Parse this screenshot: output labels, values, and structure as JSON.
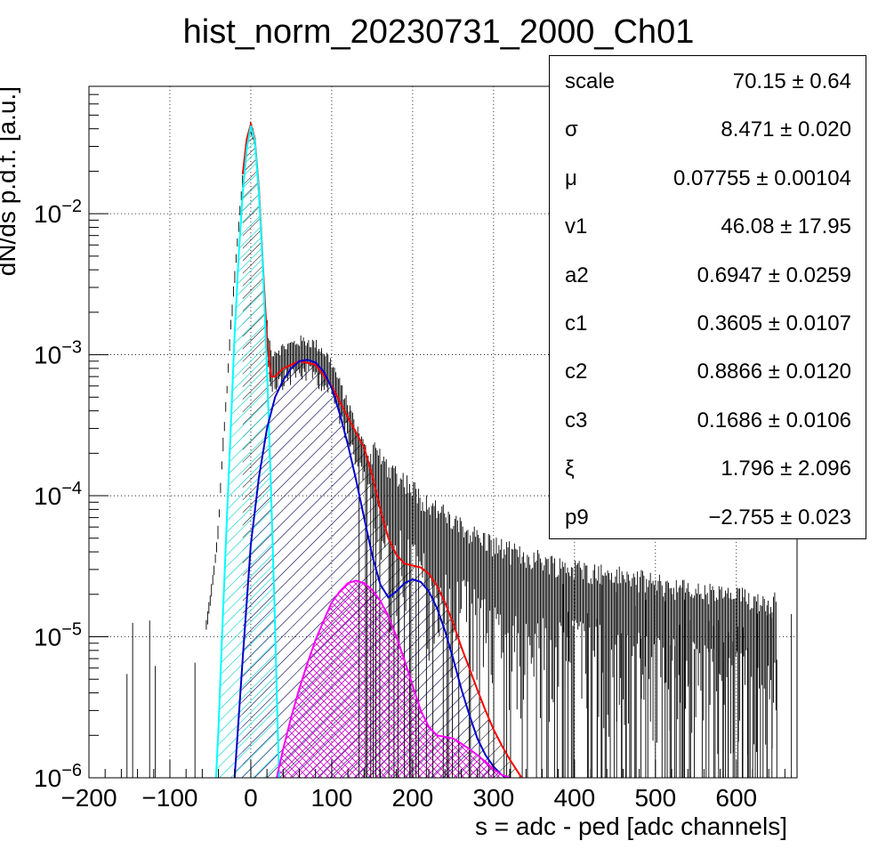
{
  "chart_data": {
    "type": "histogram",
    "title": "hist_norm_20230731_2000_Ch01",
    "xlabel": "s = adc - ped [adc channels]",
    "ylabel": "dN/ds p.d.f. [a.u.]",
    "xlim": [
      -200,
      675
    ],
    "ylim": [
      1e-06,
      0.08
    ],
    "yscale": "log",
    "grid": true,
    "x_ticks": [
      -200,
      -100,
      0,
      100,
      200,
      300,
      400,
      500,
      600
    ],
    "y_ticks": [
      {
        "value": 1e-06,
        "base": "10",
        "exp": "−6"
      },
      {
        "value": 1e-05,
        "base": "10",
        "exp": "−5"
      },
      {
        "value": 0.0001,
        "base": "10",
        "exp": "−4"
      },
      {
        "value": 0.001,
        "base": "10",
        "exp": "−3"
      },
      {
        "value": 0.01,
        "base": "10",
        "exp": "−2"
      }
    ],
    "series": [
      {
        "kind": "data",
        "color": "#000000",
        "x": [
          -55,
          -45,
          -40,
          -35,
          -30,
          -25,
          -20,
          -15,
          -10,
          -5,
          0,
          5,
          10,
          15,
          20,
          25,
          30,
          40,
          50,
          60,
          70,
          80,
          90,
          100,
          110,
          120,
          130,
          140,
          150,
          160,
          170,
          180,
          190,
          200,
          210,
          220,
          230,
          240,
          250,
          260,
          270,
          280,
          290,
          300,
          320,
          340,
          360,
          380,
          400,
          450,
          500,
          550,
          600,
          650
        ],
        "y": [
          1.2e-05,
          3e-05,
          6e-05,
          0.0002,
          0.0005,
          0.0015,
          0.0035,
          0.008,
          0.018,
          0.032,
          0.042,
          0.033,
          0.014,
          0.004,
          0.0013,
          0.00085,
          0.00085,
          0.0009,
          0.00095,
          0.001,
          0.001,
          0.00095,
          0.00085,
          0.0007,
          0.0005,
          0.00035,
          0.00025,
          0.00018,
          0.00014,
          0.00012,
          0.0001,
          9e-05,
          8e-05,
          7e-05,
          6e-05,
          5.5e-05,
          5e-05,
          4.5e-05,
          4e-05,
          3.7e-05,
          3.5e-05,
          3.2e-05,
          3e-05,
          2.8e-05,
          2.5e-05,
          2.3e-05,
          2.2e-05,
          2e-05,
          1.9e-05,
          1.7e-05,
          1.5e-05,
          1.3e-05,
          1.2e-05,
          1.1e-05
        ]
      },
      {
        "kind": "total-fit",
        "color": "#ff0000",
        "x": [
          -10,
          -5,
          0,
          5,
          10,
          15,
          20,
          25,
          30,
          40,
          60,
          80,
          100,
          120,
          140,
          150,
          160,
          170,
          180,
          190,
          200,
          210,
          220,
          230,
          240,
          250,
          260,
          270,
          280,
          290,
          300,
          310,
          320,
          330,
          340
        ],
        "y": [
          0.019,
          0.034,
          0.043,
          0.034,
          0.015,
          0.0043,
          0.0013,
          0.0007,
          0.0007,
          0.0008,
          0.0009,
          0.00085,
          0.0006,
          0.00036,
          0.00022,
          0.00014,
          8e-05,
          5e-05,
          3.8e-05,
          3.3e-05,
          3.2e-05,
          3.1e-05,
          2.8e-05,
          2.3e-05,
          1.75e-05,
          1.25e-05,
          8.5e-06,
          6e-06,
          4.2e-06,
          3e-06,
          2.2e-06,
          1.7e-06,
          1.35e-06,
          1.1e-06,
          9e-07
        ]
      },
      {
        "kind": "component",
        "color": "#00ffff",
        "hatch": "single",
        "x": [
          -43,
          -40,
          -35,
          -30,
          -25,
          -20,
          -15,
          -10,
          -5,
          0,
          5,
          10,
          15,
          20,
          25,
          30,
          33,
          35
        ],
        "y": [
          1e-06,
          2.2e-06,
          1.2e-05,
          6e-05,
          0.00028,
          0.0014,
          0.005,
          0.014,
          0.029,
          0.042,
          0.033,
          0.014,
          0.0041,
          0.0008,
          0.00011,
          1.2e-05,
          2.5e-06,
          1e-06
        ]
      },
      {
        "kind": "component",
        "color": "#0000cc",
        "hatch": "single",
        "x": [
          -20,
          -10,
          0,
          10,
          20,
          30,
          40,
          50,
          60,
          70,
          80,
          90,
          100,
          110,
          120,
          130,
          140,
          150,
          160,
          170,
          180,
          190,
          200,
          210,
          220,
          230,
          240,
          250,
          260,
          270,
          280,
          290,
          300,
          310,
          315
        ],
        "y": [
          1e-06,
          7e-06,
          4.5e-05,
          0.000135,
          0.0003,
          0.0005,
          0.00066,
          0.0008,
          0.0009,
          0.00092,
          0.00088,
          0.00076,
          0.00058,
          0.00038,
          0.00023,
          0.00013,
          7e-05,
          3.8e-05,
          2.35e-05,
          1.9e-05,
          2.1e-05,
          2.4e-05,
          2.55e-05,
          2.45e-05,
          2.1e-05,
          1.6e-05,
          1.1e-05,
          7e-06,
          4.3e-06,
          2.8e-06,
          1.9e-06,
          1.45e-06,
          1.2e-06,
          1.05e-06,
          1e-06
        ]
      },
      {
        "kind": "component",
        "color": "#ff00ff",
        "hatch": "cross",
        "x": [
          32,
          40,
          50,
          60,
          70,
          80,
          90,
          100,
          110,
          120,
          130,
          140,
          150,
          160,
          170,
          180,
          190,
          200,
          210,
          220,
          230,
          240,
          250,
          260,
          270,
          280,
          290,
          300,
          310,
          320
        ],
        "y": [
          1e-06,
          1.6e-06,
          2.7e-06,
          4.3e-06,
          6.5e-06,
          9.5e-06,
          1.3e-05,
          1.75e-05,
          2.1e-05,
          2.4e-05,
          2.5e-05,
          2.4e-05,
          2.15e-05,
          1.8e-05,
          1.4e-05,
          1e-05,
          6.8e-06,
          4.5e-06,
          3e-06,
          2.3e-06,
          2e-06,
          1.95e-06,
          1.9e-06,
          1.75e-06,
          1.6e-06,
          1.45e-06,
          1.3e-06,
          1.15e-06,
          1.05e-06,
          1e-06
        ]
      }
    ],
    "legend_position": "top-right"
  },
  "stats": [
    {
      "name": "scale",
      "value": "70.15 ± 0.64"
    },
    {
      "name": "σ",
      "value": "8.471 ± 0.020"
    },
    {
      "name": "μ",
      "value": "0.07755 ± 0.00104"
    },
    {
      "name": "v1",
      "value": "46.08 ± 17.95"
    },
    {
      "name": "a2",
      "value": "0.6947 ± 0.0259"
    },
    {
      "name": "c1",
      "value": "0.3605 ± 0.0107"
    },
    {
      "name": "c2",
      "value": "0.8866 ± 0.0120"
    },
    {
      "name": "c3",
      "value": "0.1686 ± 0.0106"
    },
    {
      "name": "ξ",
      "value": "1.796 ± 2.096"
    },
    {
      "name": "p9",
      "value": "−2.755 ± 0.023"
    }
  ]
}
